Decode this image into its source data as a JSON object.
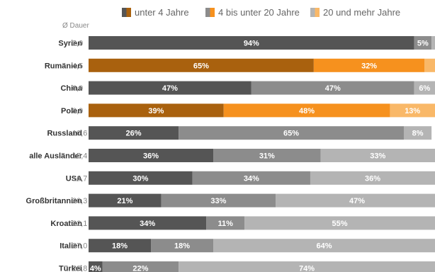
{
  "legend": {
    "items": [
      {
        "label": "unter 4 Jahre",
        "color": "#555555",
        "accent_color": "#a9610e"
      },
      {
        "label": "4 bis unter 20 Jahre",
        "color": "#8c8c8c",
        "accent_color": "#f6911e"
      },
      {
        "label": "20 und mehr Jahre",
        "color": "#b4b4b4",
        "accent_color": "#f9b868"
      }
    ]
  },
  "dauer_header": "Ø Dauer",
  "chart_data": {
    "type": "bar",
    "orientation": "horizontal",
    "stacked": true,
    "categories": [
      "Syrien",
      "Rumänien",
      "China",
      "Polen",
      "Russland",
      "alle Ausländer",
      "USA",
      "Großbritannien",
      "Kroatien",
      "Italien",
      "Türkei"
    ],
    "durations": [
      "2,0",
      "4,5",
      "6,9",
      "8,9",
      "10,6",
      "15,4",
      "16,7",
      "20,3",
      "22,1",
      "27,0",
      "28,8"
    ],
    "highlighted": [
      "Rumänien",
      "Polen"
    ],
    "series": [
      {
        "name": "unter 4 Jahre",
        "values": [
          94,
          65,
          47,
          39,
          26,
          36,
          30,
          21,
          34,
          18,
          4
        ]
      },
      {
        "name": "4 bis unter 20 Jahre",
        "values": [
          5,
          32,
          47,
          48,
          65,
          31,
          34,
          33,
          11,
          18,
          22
        ]
      },
      {
        "name": "20 und mehr Jahre",
        "values": [
          1,
          3,
          6,
          13,
          8,
          33,
          36,
          47,
          55,
          64,
          74
        ]
      }
    ],
    "data_labels": [
      [
        "94%",
        "5%",
        ""
      ],
      [
        "65%",
        "32%",
        ""
      ],
      [
        "47%",
        "47%",
        "6%"
      ],
      [
        "39%",
        "48%",
        "13%"
      ],
      [
        "26%",
        "65%",
        "8%"
      ],
      [
        "36%",
        "31%",
        "33%"
      ],
      [
        "30%",
        "34%",
        "36%"
      ],
      [
        "21%",
        "33%",
        "47%"
      ],
      [
        "34%",
        "11%",
        "55%"
      ],
      [
        "18%",
        "18%",
        "64%"
      ],
      [
        "4%",
        "22%",
        "74%"
      ]
    ],
    "unit": "%"
  }
}
